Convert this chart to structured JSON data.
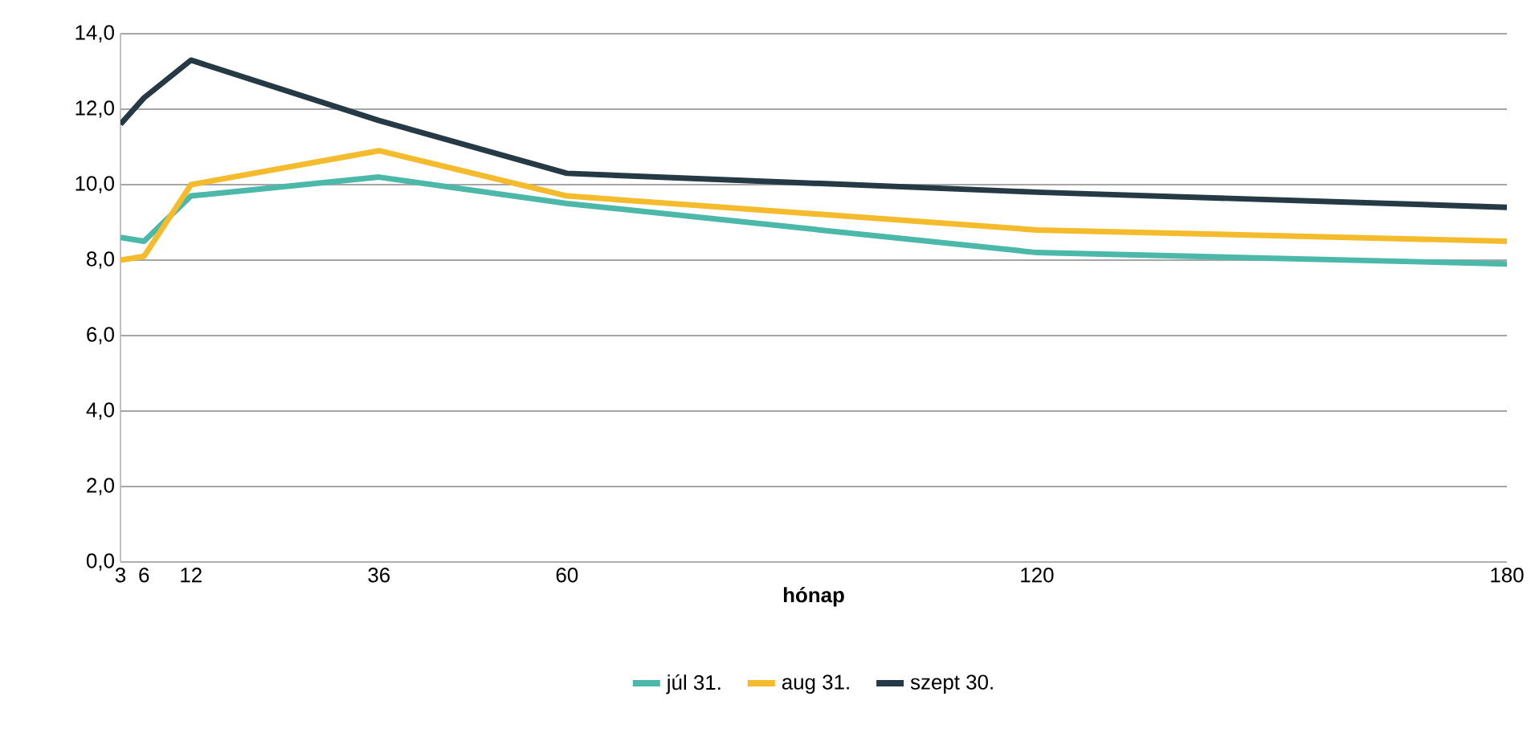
{
  "chart_data": {
    "type": "line",
    "xlabel": "hónap",
    "x": [
      3,
      6,
      12,
      36,
      60,
      120,
      180
    ],
    "xlim": [
      3,
      180
    ],
    "xticks": [
      3,
      6,
      12,
      36,
      60,
      120,
      180
    ],
    "ylim": [
      0,
      14
    ],
    "yticks": [
      {
        "value": 0,
        "label": "0,0"
      },
      {
        "value": 2,
        "label": "2,0"
      },
      {
        "value": 4,
        "label": "4,0"
      },
      {
        "value": 6,
        "label": "6,0"
      },
      {
        "value": 8,
        "label": "8,0"
      },
      {
        "value": 10,
        "label": "10,0"
      },
      {
        "value": 12,
        "label": "12,0"
      },
      {
        "value": 14,
        "label": "14,0"
      }
    ],
    "grid": "y",
    "legend": "bottom",
    "marker": "none",
    "line_style": "solid",
    "series": [
      {
        "name": "júl 31.",
        "color": "#4bb8a9",
        "values": [
          8.6,
          8.5,
          9.7,
          10.2,
          9.5,
          8.2,
          7.9
        ]
      },
      {
        "name": "aug 31.",
        "color": "#f4bc2c",
        "values": [
          8.0,
          8.1,
          10.0,
          10.9,
          9.7,
          8.8,
          8.5
        ]
      },
      {
        "name": "szept 30.",
        "color": "#263a46",
        "values": [
          11.6,
          12.3,
          13.3,
          11.7,
          10.3,
          9.8,
          9.4
        ]
      }
    ]
  }
}
